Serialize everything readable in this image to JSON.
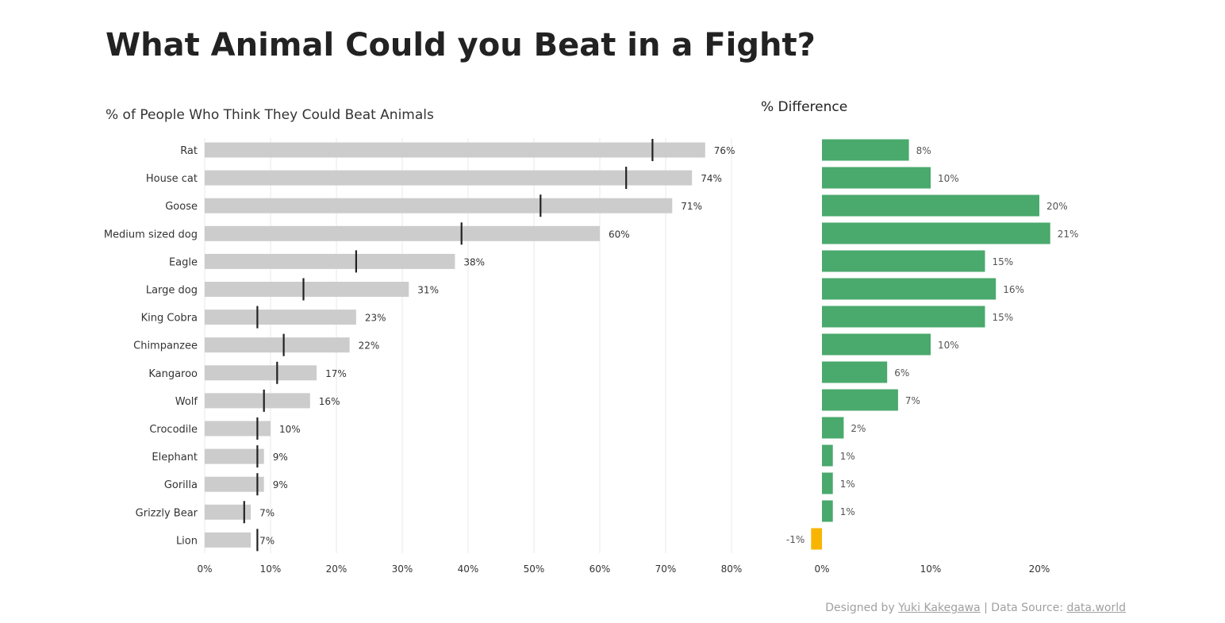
{
  "title": "What Animal Could you Beat in a Fight?",
  "chart_data": [
    {
      "type": "bar",
      "orientation": "horizontal",
      "title": "% of People Who Think They Could Beat Animals",
      "categories": [
        "Rat",
        "House cat",
        "Goose",
        "Medium sized dog",
        "Eagle",
        "Large dog",
        "King Cobra",
        "Chimpanzee",
        "Kangaroo",
        "Wolf",
        "Crocodile",
        "Elephant",
        "Gorilla",
        "Grizzly Bear",
        "Lion"
      ],
      "values": [
        76,
        74,
        71,
        60,
        38,
        31,
        23,
        22,
        17,
        16,
        10,
        9,
        9,
        7,
        7
      ],
      "reference_values": [
        68,
        64,
        51,
        39,
        23,
        15,
        8,
        12,
        11,
        9,
        8,
        8,
        8,
        6,
        8
      ],
      "value_labels": [
        "76%",
        "74%",
        "71%",
        "60%",
        "38%",
        "31%",
        "23%",
        "22%",
        "17%",
        "16%",
        "10%",
        "9%",
        "9%",
        "7%",
        "7%"
      ],
      "xlim": [
        0,
        80
      ],
      "xticks": [
        0,
        10,
        20,
        30,
        40,
        50,
        60,
        70,
        80
      ],
      "xtick_labels": [
        "0%",
        "10%",
        "20%",
        "30%",
        "40%",
        "50%",
        "60%",
        "70%",
        "80%"
      ],
      "grid": true,
      "colors": {
        "bar": "#cccccc",
        "reference": "#222222",
        "grid": "#e8e8e8"
      }
    },
    {
      "type": "bar",
      "orientation": "horizontal",
      "title": "% Difference",
      "categories": [
        "Rat",
        "House cat",
        "Goose",
        "Medium sized dog",
        "Eagle",
        "Large dog",
        "King Cobra",
        "Chimpanzee",
        "Kangaroo",
        "Wolf",
        "Crocodile",
        "Elephant",
        "Gorilla",
        "Grizzly Bear",
        "Lion"
      ],
      "values": [
        8,
        10,
        20,
        21,
        15,
        16,
        15,
        10,
        6,
        7,
        2,
        1,
        1,
        1,
        -1
      ],
      "value_labels": [
        "8%",
        "10%",
        "20%",
        "21%",
        "15%",
        "16%",
        "15%",
        "10%",
        "6%",
        "7%",
        "2%",
        "1%",
        "1%",
        "1%",
        "-1%"
      ],
      "xlim": [
        -1.5,
        25
      ],
      "xticks": [
        0,
        10,
        20
      ],
      "xtick_labels": [
        "0%",
        "10%",
        "20%"
      ],
      "grid": false,
      "colors": {
        "positive": "#4aa96c",
        "negative": "#f7b500"
      }
    }
  ],
  "footer": {
    "designed_by": "Designed by",
    "author": "Yuki Kakegawa",
    "separator": "| Data Source:",
    "source": "data.world"
  }
}
